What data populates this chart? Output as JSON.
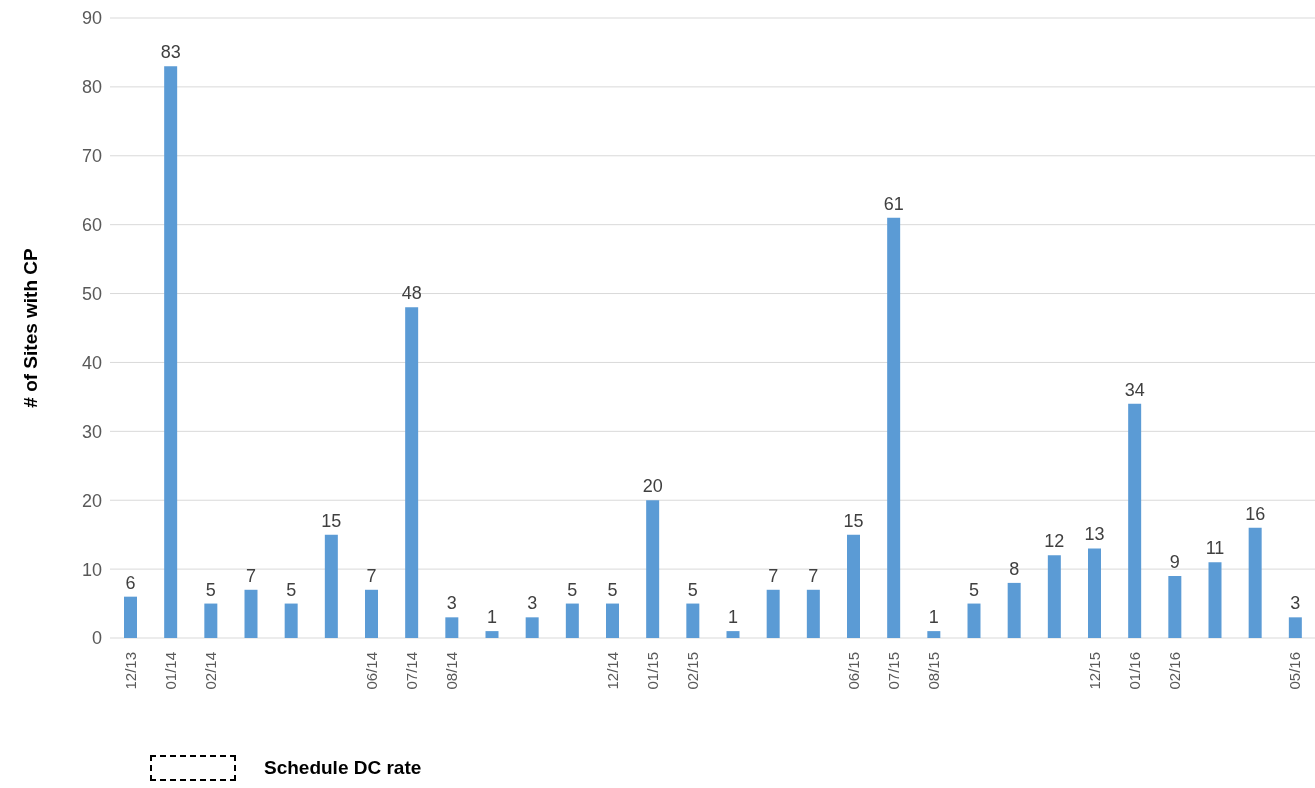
{
  "chart_data": {
    "type": "bar",
    "ylabel": "# of Sites with CP",
    "categories": [
      "12/13",
      "01/14",
      "02/14",
      null,
      null,
      null,
      "06/14",
      "07/14",
      "08/14",
      null,
      null,
      null,
      "12/14",
      "01/15",
      "02/15",
      null,
      null,
      null,
      "06/15",
      "07/15",
      "08/15",
      null,
      null,
      null,
      "12/15",
      "01/16",
      "02/16",
      null,
      null,
      "05/16"
    ],
    "values": [
      6,
      83,
      5,
      7,
      5,
      15,
      7,
      48,
      3,
      1,
      3,
      5,
      5,
      20,
      5,
      1,
      7,
      7,
      15,
      61,
      1,
      5,
      8,
      12,
      13,
      34,
      9,
      11,
      16,
      3
    ],
    "color": "#5b9bd5",
    "ylim": [
      0,
      90
    ],
    "yticks": [
      0,
      10,
      20,
      30,
      40,
      50,
      60,
      70,
      80,
      90
    ],
    "grid": "y",
    "data_labels": true,
    "annotations": [
      "Schedule DC rate"
    ]
  }
}
